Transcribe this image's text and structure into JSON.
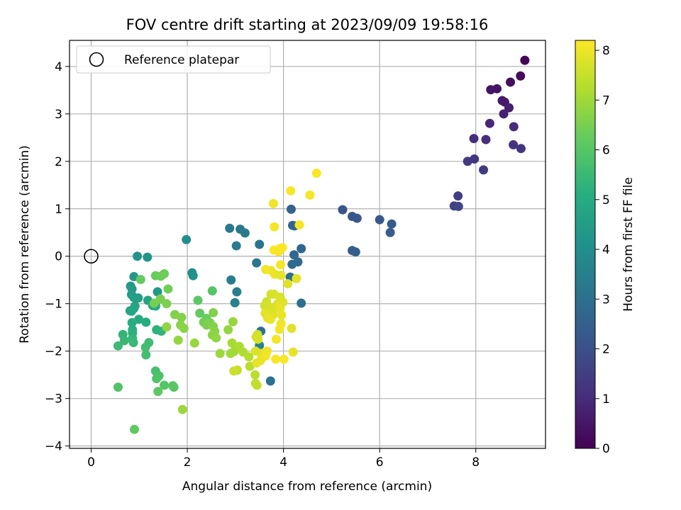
{
  "chart_data": {
    "type": "scatter",
    "title": "FOV centre drift starting at 2023/09/09 19:58:16",
    "xlabel": "Angular distance from reference (arcmin)",
    "ylabel": "Rotation from reference (arcmin)",
    "xlim": [
      -0.45,
      9.45
    ],
    "ylim": [
      -4.05,
      4.55
    ],
    "xticks": [
      0,
      2,
      4,
      6,
      8
    ],
    "yticks": [
      -4,
      -3,
      -2,
      -1,
      0,
      1,
      2,
      3,
      4
    ],
    "grid": true,
    "legend": {
      "position": "top-left",
      "entries": [
        "Reference platepar"
      ]
    },
    "reference_point": {
      "x": 0,
      "y": 0
    },
    "colorbar": {
      "label": "Hours from first FF file",
      "range": [
        0,
        8.2
      ],
      "ticks": [
        0,
        1,
        2,
        3,
        4,
        5,
        6,
        7,
        8
      ],
      "colormap": "viridis"
    },
    "points": [
      [
        9.02,
        4.13,
        0.1
      ],
      [
        8.93,
        3.8,
        0.2
      ],
      [
        8.72,
        3.67,
        0.3
      ],
      [
        8.44,
        3.53,
        0.4
      ],
      [
        8.31,
        3.51,
        0.5
      ],
      [
        8.55,
        3.28,
        0.55
      ],
      [
        8.6,
        3.25,
        0.6
      ],
      [
        8.69,
        3.13,
        0.7
      ],
      [
        8.58,
        3.0,
        0.8
      ],
      [
        8.29,
        2.8,
        0.9
      ],
      [
        8.79,
        2.73,
        1.0
      ],
      [
        7.96,
        2.48,
        1.05
      ],
      [
        8.21,
        2.46,
        1.1
      ],
      [
        8.78,
        2.35,
        1.2
      ],
      [
        8.94,
        2.27,
        1.25
      ],
      [
        7.97,
        2.05,
        1.3
      ],
      [
        7.83,
        2.0,
        1.35
      ],
      [
        8.16,
        1.82,
        1.4
      ],
      [
        7.63,
        1.27,
        1.5
      ],
      [
        7.55,
        1.06,
        1.6
      ],
      [
        7.64,
        1.05,
        1.7
      ],
      [
        5.23,
        0.98,
        2.1
      ],
      [
        5.43,
        0.84,
        2.15
      ],
      [
        5.53,
        0.8,
        2.2
      ],
      [
        6.0,
        0.77,
        2.25
      ],
      [
        6.25,
        0.68,
        2.3
      ],
      [
        6.22,
        0.5,
        2.35
      ],
      [
        5.43,
        0.12,
        2.4
      ],
      [
        5.5,
        0.09,
        2.45
      ],
      [
        4.16,
        0.99,
        2.55
      ],
      [
        4.19,
        0.65,
        2.6
      ],
      [
        4.23,
        0.64,
        2.65
      ],
      [
        4.37,
        0.16,
        2.7
      ],
      [
        4.22,
        0.03,
        2.75
      ],
      [
        4.3,
        -0.12,
        2.8
      ],
      [
        4.18,
        -0.17,
        2.85
      ],
      [
        4.14,
        -0.44,
        2.9
      ],
      [
        4.37,
        -0.99,
        2.95
      ],
      [
        3.53,
        -1.58,
        3.0
      ],
      [
        3.73,
        -2.63,
        3.05
      ],
      [
        3.5,
        0.25,
        3.15
      ],
      [
        3.44,
        -0.14,
        3.2
      ],
      [
        3.1,
        0.57,
        3.25
      ],
      [
        2.88,
        0.59,
        3.3
      ],
      [
        3.2,
        0.49,
        3.35
      ],
      [
        3.02,
        0.22,
        3.4
      ],
      [
        2.91,
        -0.5,
        3.45
      ],
      [
        3.03,
        -0.75,
        3.5
      ],
      [
        2.99,
        -0.98,
        3.55
      ],
      [
        3.5,
        -1.88,
        3.6
      ],
      [
        1.98,
        0.35,
        4.0
      ],
      [
        2.1,
        -0.35,
        4.05
      ],
      [
        2.12,
        -0.41,
        4.1
      ],
      [
        0.96,
        0.0,
        4.2
      ],
      [
        1.17,
        -0.02,
        4.25
      ],
      [
        0.89,
        -0.43,
        4.3
      ],
      [
        1.38,
        -0.75,
        4.35
      ],
      [
        0.82,
        -0.63,
        4.4
      ],
      [
        0.85,
        -0.69,
        4.45
      ],
      [
        0.84,
        -0.81,
        4.5
      ],
      [
        0.89,
        -0.87,
        4.55
      ],
      [
        0.98,
        -0.88,
        4.6
      ],
      [
        1.18,
        -0.93,
        4.65
      ],
      [
        0.91,
        -1.05,
        4.7
      ],
      [
        0.81,
        -1.15,
        4.75
      ],
      [
        0.89,
        -1.1,
        4.8
      ],
      [
        0.84,
        -1.16,
        4.85
      ],
      [
        1.28,
        -1.04,
        4.9
      ],
      [
        1.34,
        -1.05,
        4.95
      ],
      [
        0.99,
        -1.33,
        5.0
      ],
      [
        1.14,
        -1.39,
        5.05
      ],
      [
        0.85,
        -1.4,
        5.1
      ],
      [
        0.86,
        -1.55,
        5.15
      ],
      [
        0.86,
        -1.62,
        5.2
      ],
      [
        1.36,
        -1.55,
        5.25
      ],
      [
        1.46,
        -1.58,
        5.3
      ],
      [
        0.66,
        -1.65,
        5.35
      ],
      [
        0.86,
        -1.73,
        5.4
      ],
      [
        0.69,
        -1.78,
        5.45
      ],
      [
        0.88,
        -1.82,
        5.5
      ],
      [
        0.56,
        -1.89,
        5.55
      ],
      [
        1.2,
        -1.82,
        5.6
      ],
      [
        1.13,
        -1.92,
        5.65
      ],
      [
        1.14,
        -2.08,
        5.7
      ],
      [
        1.34,
        -2.42,
        5.75
      ],
      [
        1.41,
        -2.52,
        5.8
      ],
      [
        1.36,
        -2.58,
        5.85
      ],
      [
        0.56,
        -2.76,
        5.9
      ],
      [
        1.52,
        -2.72,
        5.95
      ],
      [
        1.7,
        -2.73,
        6.0
      ],
      [
        1.72,
        -2.76,
        6.05
      ],
      [
        1.39,
        -2.85,
        6.1
      ],
      [
        0.9,
        -3.65,
        6.15
      ],
      [
        1.03,
        -0.49,
        6.2
      ],
      [
        1.34,
        -0.41,
        6.25
      ],
      [
        1.45,
        -0.42,
        6.3
      ],
      [
        1.52,
        -0.37,
        6.35
      ],
      [
        1.6,
        -0.69,
        6.4
      ],
      [
        1.31,
        -0.99,
        6.45
      ],
      [
        1.44,
        -0.9,
        6.5
      ],
      [
        1.57,
        -1.0,
        6.55
      ],
      [
        1.74,
        -1.23,
        6.6
      ],
      [
        1.88,
        -1.29,
        6.65
      ],
      [
        1.86,
        -1.45,
        6.7
      ],
      [
        1.93,
        -1.52,
        6.75
      ],
      [
        1.57,
        -1.49,
        6.8
      ],
      [
        1.81,
        -1.77,
        6.85
      ],
      [
        2.15,
        -1.83,
        6.9
      ],
      [
        1.9,
        -3.23,
        6.95
      ],
      [
        2.52,
        -0.73,
        6.0
      ],
      [
        2.22,
        -0.93,
        6.1
      ],
      [
        2.26,
        -1.2,
        6.2
      ],
      [
        2.4,
        -1.31,
        6.3
      ],
      [
        2.34,
        -1.39,
        6.4
      ],
      [
        2.47,
        -1.4,
        6.5
      ],
      [
        2.4,
        -1.45,
        6.55
      ],
      [
        2.54,
        -1.19,
        6.6
      ],
      [
        2.54,
        -1.48,
        6.65
      ],
      [
        2.57,
        -1.58,
        6.7
      ],
      [
        2.52,
        -1.66,
        6.75
      ],
      [
        2.6,
        -1.72,
        6.8
      ],
      [
        2.85,
        -1.55,
        6.85
      ],
      [
        2.95,
        -1.38,
        6.9
      ],
      [
        2.68,
        -2.05,
        6.95
      ],
      [
        2.9,
        -2.05,
        7.0
      ],
      [
        2.97,
        -2.01,
        7.05
      ],
      [
        2.93,
        -1.83,
        7.1
      ],
      [
        3.08,
        -1.9,
        7.15
      ],
      [
        3.16,
        -2.02,
        7.2
      ],
      [
        3.28,
        -2.12,
        7.25
      ],
      [
        3.3,
        -2.32,
        7.3
      ],
      [
        3.41,
        -2.5,
        7.35
      ],
      [
        3.42,
        -2.68,
        7.4
      ],
      [
        3.45,
        -2.72,
        7.45
      ],
      [
        3.04,
        -2.4,
        7.5
      ],
      [
        2.97,
        -2.42,
        7.55
      ],
      [
        3.46,
        -1.65,
        7.6
      ],
      [
        3.43,
        -1.7,
        7.65
      ],
      [
        3.47,
        -1.75,
        7.7
      ],
      [
        3.42,
        -2.0,
        7.75
      ],
      [
        3.53,
        -2.05,
        7.8
      ],
      [
        3.55,
        -2.15,
        7.85
      ],
      [
        3.44,
        -2.25,
        7.9
      ],
      [
        3.52,
        -2.2,
        7.95
      ],
      [
        3.66,
        -2.0,
        8.0
      ],
      [
        3.63,
        -2.1,
        8.05
      ],
      [
        3.84,
        -2.17,
        8.1
      ],
      [
        4.01,
        -2.17,
        8.15
      ],
      [
        3.65,
        -0.96,
        7.6
      ],
      [
        3.61,
        -1.04,
        7.65
      ],
      [
        3.71,
        -1.08,
        7.7
      ],
      [
        3.82,
        -1.1,
        7.75
      ],
      [
        3.78,
        -1.24,
        7.8
      ],
      [
        3.62,
        -1.2,
        7.85
      ],
      [
        3.67,
        -1.3,
        7.9
      ],
      [
        3.73,
        -1.33,
        7.95
      ],
      [
        3.74,
        -0.8,
        7.65
      ],
      [
        3.8,
        -0.8,
        7.7
      ],
      [
        3.93,
        -0.86,
        7.75
      ],
      [
        3.99,
        -0.97,
        7.8
      ],
      [
        3.88,
        -1.0,
        7.85
      ],
      [
        3.93,
        -1.1,
        7.9
      ],
      [
        3.96,
        -1.24,
        7.95
      ],
      [
        3.95,
        -1.42,
        8.0
      ],
      [
        3.92,
        -1.54,
        8.05
      ],
      [
        3.85,
        -1.75,
        8.1
      ],
      [
        4.17,
        -1.52,
        7.85
      ],
      [
        4.2,
        -2.02,
        7.9
      ],
      [
        4.09,
        -0.58,
        7.8
      ],
      [
        4.27,
        -0.47,
        7.85
      ],
      [
        3.95,
        -0.4,
        7.9
      ],
      [
        3.82,
        -0.38,
        7.95
      ],
      [
        3.74,
        -0.3,
        8.0
      ],
      [
        3.63,
        -0.28,
        8.05
      ],
      [
        3.94,
        -0.18,
        8.1
      ],
      [
        3.8,
        0.13,
        8.15
      ],
      [
        3.92,
        0.16,
        8.18
      ],
      [
        3.98,
        0.18,
        8.2
      ],
      [
        3.9,
        0.1,
        8.12
      ],
      [
        3.81,
        0.62,
        8.1
      ],
      [
        3.79,
        1.11,
        8.05
      ],
      [
        4.33,
        0.66,
        8.1
      ],
      [
        4.15,
        1.38,
        8.15
      ],
      [
        4.55,
        1.29,
        8.1
      ],
      [
        4.69,
        1.75,
        8.2
      ]
    ]
  }
}
